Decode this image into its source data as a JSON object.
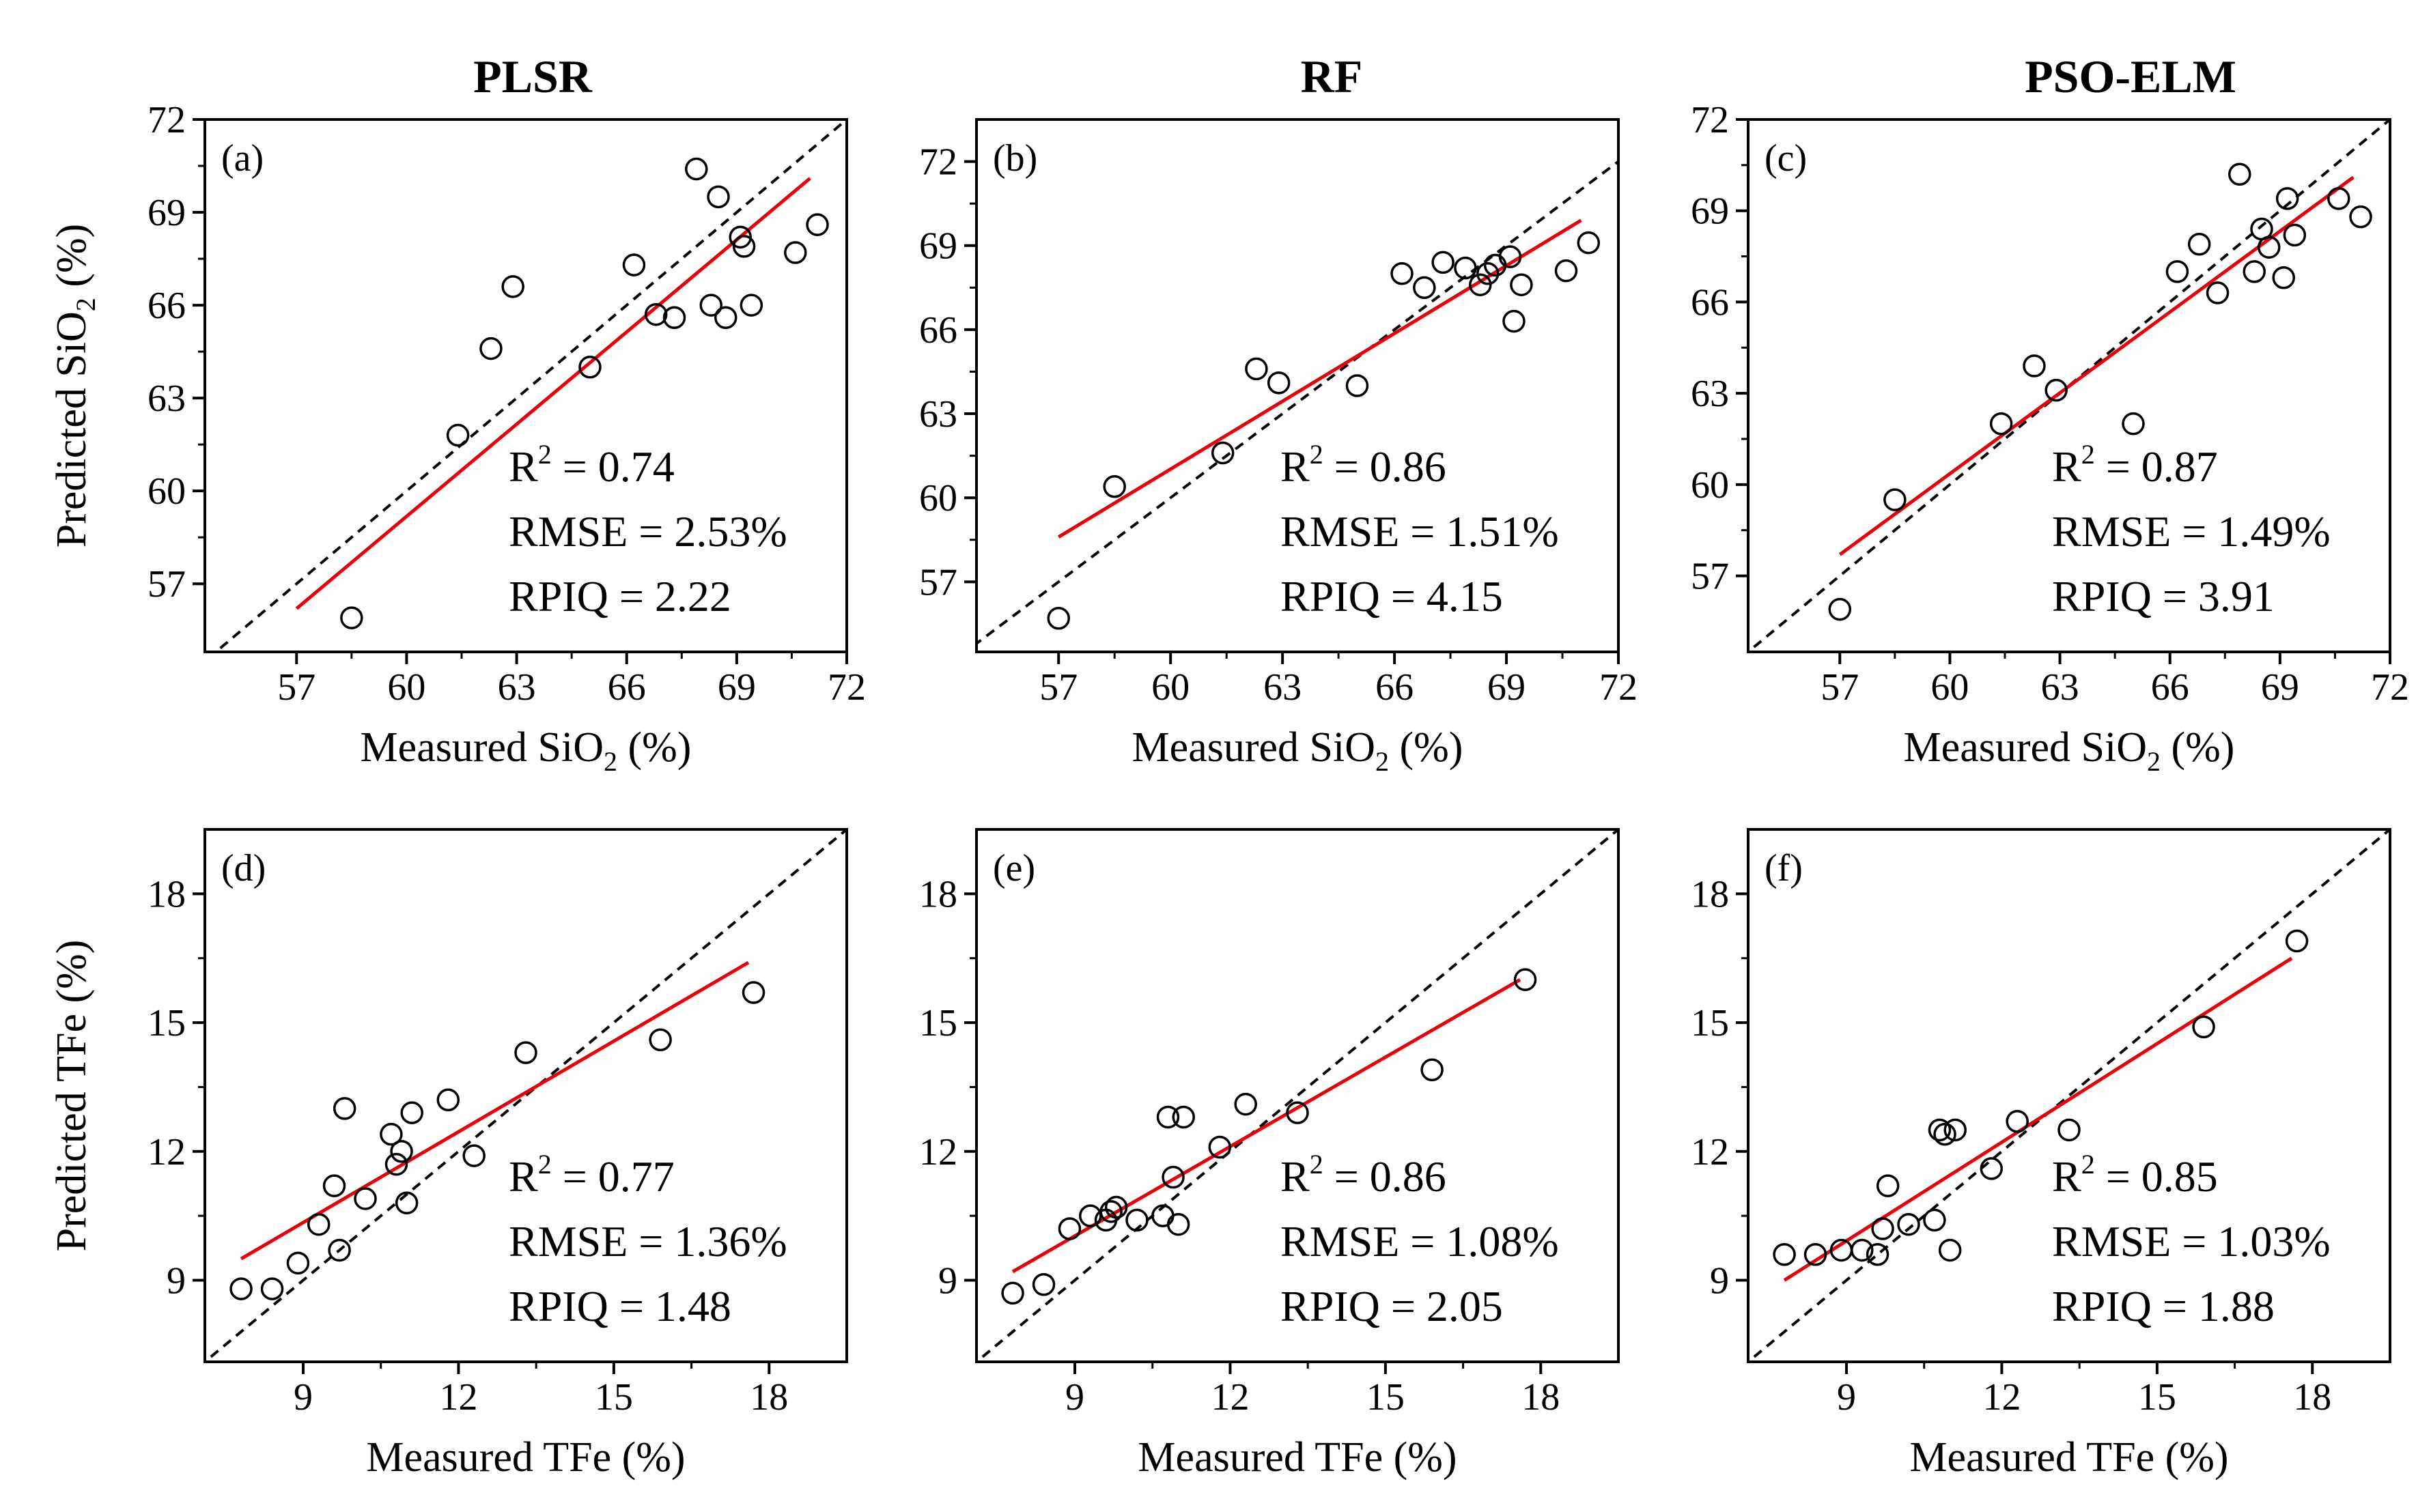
{
  "figure": {
    "column_titles": [
      "PLSR",
      "RF",
      "PSO-ELM"
    ]
  },
  "colors": {
    "fit": "#e8000b",
    "points": "#000000",
    "identity": "#000000"
  },
  "chart_data": [
    {
      "type": "scatter",
      "panel": "(a)",
      "model": "PLSR",
      "target": "SiO2",
      "xlabel": "Measured SiO2 (%)",
      "ylabel": "Predicted SiO2 (%)",
      "xlim": [
        54.5,
        72
      ],
      "ylim": [
        54.8,
        72
      ],
      "xticks": [
        57,
        60,
        63,
        66,
        69,
        72
      ],
      "yticks": [
        57,
        60,
        63,
        66,
        69,
        72
      ],
      "points": [
        [
          58.5,
          55.9
        ],
        [
          61.4,
          61.8
        ],
        [
          62.3,
          64.6
        ],
        [
          62.9,
          66.6
        ],
        [
          65.0,
          64.0
        ],
        [
          66.2,
          67.3
        ],
        [
          66.8,
          65.7
        ],
        [
          67.3,
          65.6
        ],
        [
          67.9,
          70.4
        ],
        [
          68.3,
          66.0
        ],
        [
          68.5,
          69.5
        ],
        [
          68.7,
          65.6
        ],
        [
          69.1,
          68.2
        ],
        [
          69.2,
          67.9
        ],
        [
          69.4,
          66.0
        ],
        [
          70.6,
          67.7
        ],
        [
          71.2,
          68.6
        ]
      ],
      "fit": {
        "x": [
          57.0,
          71.0
        ],
        "y": [
          56.2,
          70.1
        ]
      },
      "stats": {
        "r2": "0.74",
        "rmse": "2.53%",
        "rpiq": "2.22"
      }
    },
    {
      "type": "scatter",
      "panel": "(b)",
      "model": "RF",
      "target": "SiO2",
      "xlabel": "Measured SiO2 (%)",
      "ylabel": "Predicted SiO2 (%)",
      "xlim": [
        54.8,
        72
      ],
      "ylim": [
        54.5,
        73.5
      ],
      "xticks": [
        57,
        60,
        63,
        66,
        69,
        72
      ],
      "yticks": [
        57,
        60,
        63,
        66,
        69,
        72
      ],
      "points": [
        [
          57.0,
          55.7
        ],
        [
          58.5,
          60.4
        ],
        [
          61.4,
          61.6
        ],
        [
          62.3,
          64.6
        ],
        [
          62.9,
          64.1
        ],
        [
          65.0,
          64.0
        ],
        [
          66.2,
          68.0
        ],
        [
          66.8,
          67.5
        ],
        [
          67.3,
          68.4
        ],
        [
          67.9,
          68.2
        ],
        [
          68.3,
          67.6
        ],
        [
          68.5,
          68.0
        ],
        [
          68.7,
          68.3
        ],
        [
          69.1,
          68.6
        ],
        [
          69.2,
          66.3
        ],
        [
          69.4,
          67.6
        ],
        [
          70.6,
          68.1
        ],
        [
          71.2,
          69.1
        ]
      ],
      "fit": {
        "x": [
          57.0,
          71.0
        ],
        "y": [
          58.6,
          69.9
        ]
      },
      "stats": {
        "r2": "0.86",
        "rmse": "1.51%",
        "rpiq": "4.15"
      }
    },
    {
      "type": "scatter",
      "panel": "(c)",
      "model": "PSO-ELM",
      "target": "SiO2",
      "xlabel": "Measured SiO2 (%)",
      "ylabel": "Predicted SiO2 (%)",
      "xlim": [
        54.5,
        72
      ],
      "ylim": [
        54.5,
        72
      ],
      "xticks": [
        57,
        60,
        63,
        66,
        69,
        72
      ],
      "yticks": [
        57,
        60,
        63,
        66,
        69,
        72
      ],
      "points": [
        [
          57.0,
          55.9
        ],
        [
          58.5,
          59.5
        ],
        [
          61.4,
          62.0
        ],
        [
          62.3,
          63.9
        ],
        [
          62.9,
          63.1
        ],
        [
          65.0,
          62.0
        ],
        [
          66.2,
          67.0
        ],
        [
          66.8,
          67.9
        ],
        [
          67.3,
          66.3
        ],
        [
          67.9,
          70.2
        ],
        [
          68.3,
          67.0
        ],
        [
          68.5,
          68.4
        ],
        [
          68.7,
          67.8
        ],
        [
          69.1,
          66.8
        ],
        [
          69.2,
          69.4
        ],
        [
          69.4,
          68.2
        ],
        [
          70.6,
          69.4
        ],
        [
          71.2,
          68.8
        ]
      ],
      "fit": {
        "x": [
          57.0,
          71.0
        ],
        "y": [
          57.7,
          70.1
        ]
      },
      "stats": {
        "r2": "0.87",
        "rmse": "1.49%",
        "rpiq": "3.91"
      }
    },
    {
      "type": "scatter",
      "panel": "(d)",
      "model": "PLSR",
      "target": "TFe",
      "xlabel": "Measured TFe (%)",
      "ylabel": "Predicted TFe (%)",
      "xlim": [
        7.1,
        19.5
      ],
      "ylim": [
        7.1,
        19.5
      ],
      "xticks": [
        9,
        12,
        15,
        18
      ],
      "yticks": [
        9,
        12,
        15,
        18
      ],
      "points": [
        [
          7.8,
          8.8
        ],
        [
          8.4,
          8.8
        ],
        [
          8.9,
          9.4
        ],
        [
          9.3,
          10.3
        ],
        [
          9.6,
          11.2
        ],
        [
          9.7,
          9.7
        ],
        [
          9.8,
          13.0
        ],
        [
          10.2,
          10.9
        ],
        [
          10.7,
          12.4
        ],
        [
          10.8,
          11.7
        ],
        [
          10.9,
          12.0
        ],
        [
          11.0,
          10.8
        ],
        [
          11.1,
          12.9
        ],
        [
          11.8,
          13.2
        ],
        [
          12.3,
          11.9
        ],
        [
          13.3,
          14.3
        ],
        [
          15.9,
          14.6
        ],
        [
          17.7,
          15.7
        ]
      ],
      "fit": {
        "x": [
          7.8,
          17.6
        ],
        "y": [
          9.5,
          16.4
        ]
      },
      "stats": {
        "r2": "0.77",
        "rmse": "1.36%",
        "rpiq": "1.48"
      }
    },
    {
      "type": "scatter",
      "panel": "(e)",
      "model": "RF",
      "target": "TFe",
      "xlabel": "Measured TFe (%)",
      "ylabel": "Predicted TFe (%)",
      "xlim": [
        7.1,
        19.5
      ],
      "ylim": [
        7.1,
        19.5
      ],
      "xticks": [
        9,
        12,
        15,
        18
      ],
      "yticks": [
        9,
        12,
        15,
        18
      ],
      "points": [
        [
          7.8,
          8.7
        ],
        [
          8.4,
          8.9
        ],
        [
          8.9,
          10.2
        ],
        [
          9.3,
          10.5
        ],
        [
          9.6,
          10.4
        ],
        [
          9.7,
          10.6
        ],
        [
          9.8,
          10.7
        ],
        [
          10.2,
          10.4
        ],
        [
          10.7,
          10.5
        ],
        [
          10.8,
          12.8
        ],
        [
          10.9,
          11.4
        ],
        [
          11.0,
          10.3
        ],
        [
          11.1,
          12.8
        ],
        [
          11.8,
          12.1
        ],
        [
          12.3,
          13.1
        ],
        [
          13.3,
          12.9
        ],
        [
          15.9,
          13.9
        ],
        [
          17.7,
          16.0
        ]
      ],
      "fit": {
        "x": [
          7.8,
          17.6
        ],
        "y": [
          9.2,
          16.0
        ]
      },
      "stats": {
        "r2": "0.86",
        "rmse": "1.08%",
        "rpiq": "2.05"
      }
    },
    {
      "type": "scatter",
      "panel": "(f)",
      "model": "PSO-ELM",
      "target": "TFe",
      "xlabel": "Measured TFe (%)",
      "ylabel": "Predicted TFe (%)",
      "xlim": [
        7.1,
        19.5
      ],
      "ylim": [
        7.1,
        19.5
      ],
      "xticks": [
        9,
        12,
        15,
        18
      ],
      "yticks": [
        9,
        12,
        15,
        18
      ],
      "points": [
        [
          7.8,
          9.6
        ],
        [
          8.4,
          9.6
        ],
        [
          8.9,
          9.7
        ],
        [
          9.3,
          9.7
        ],
        [
          9.6,
          9.6
        ],
        [
          9.7,
          10.2
        ],
        [
          9.8,
          11.2
        ],
        [
          10.2,
          10.3
        ],
        [
          10.7,
          10.4
        ],
        [
          10.8,
          12.5
        ],
        [
          10.9,
          12.4
        ],
        [
          11.0,
          9.7
        ],
        [
          11.1,
          12.5
        ],
        [
          11.8,
          11.6
        ],
        [
          12.3,
          12.7
        ],
        [
          13.3,
          12.5
        ],
        [
          15.9,
          14.9
        ],
        [
          17.7,
          16.9
        ]
      ],
      "fit": {
        "x": [
          7.8,
          17.6
        ],
        "y": [
          9.0,
          16.5
        ]
      },
      "stats": {
        "r2": "0.85",
        "rmse": "1.03%",
        "rpiq": "1.88"
      }
    }
  ]
}
